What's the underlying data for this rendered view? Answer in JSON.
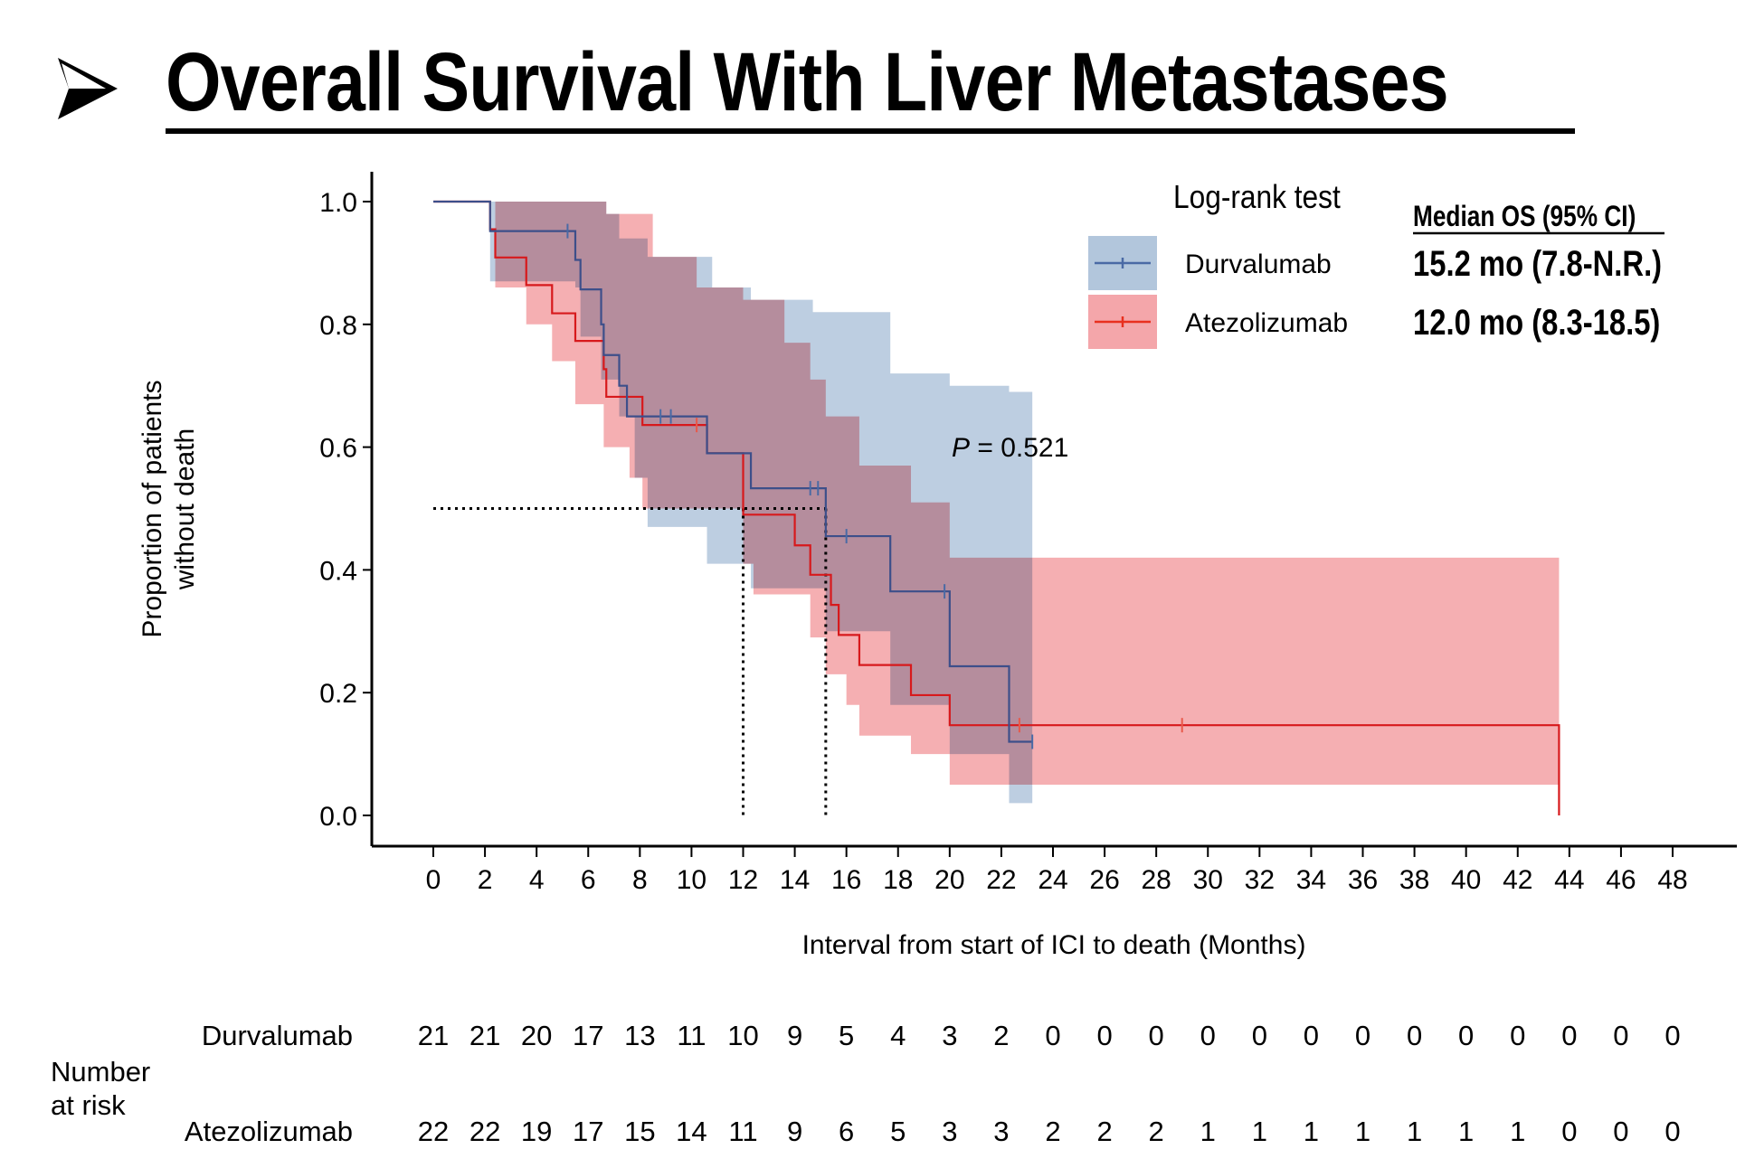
{
  "slide": {
    "bullet_icon": "arrowhead-bullet-icon",
    "title": "Overall Survival With Liver Metastases"
  },
  "chart_data": {
    "type": "line",
    "subtype": "kaplan-meier",
    "title": "Overall Survival With Liver Metastases",
    "xlabel": "Interval from start of ICI to death (Months)",
    "ylabel_line1": "Proportion of patients",
    "ylabel_line2": "without death",
    "xlim": [
      0,
      48
    ],
    "ylim": [
      0,
      1.0
    ],
    "x_ticks": [
      0,
      2,
      4,
      6,
      8,
      10,
      12,
      14,
      16,
      18,
      20,
      22,
      24,
      26,
      28,
      30,
      32,
      34,
      36,
      38,
      40,
      42,
      44,
      46,
      48
    ],
    "y_ticks": [
      0.0,
      0.2,
      0.4,
      0.6,
      0.8,
      1.0
    ],
    "y_tick_labels": [
      "0.0",
      "0.2",
      "0.4",
      "0.6",
      "0.8",
      "1.0"
    ],
    "grid": false,
    "legend": {
      "title": "Log-rank test",
      "placement": "top-right",
      "median_header": "Median OS (95% CI)"
    },
    "annotation": {
      "p_label": "P",
      "p_eq": "= 0.521"
    },
    "median_reference_lines": {
      "y": 0.5,
      "x": [
        12.0,
        15.2
      ]
    },
    "series": [
      {
        "name": "Durvalumab",
        "color": "#3d4f8a",
        "band_color": "#b2c6dc",
        "median_os": "15.2 mo (7.8-N.R.)",
        "steps": [
          [
            0,
            1.0
          ],
          [
            2.2,
            0.952
          ],
          [
            5.5,
            0.905
          ],
          [
            5.7,
            0.857
          ],
          [
            6.5,
            0.8
          ],
          [
            6.6,
            0.75
          ],
          [
            7.2,
            0.7
          ],
          [
            7.5,
            0.65
          ],
          [
            10.6,
            0.59
          ],
          [
            12.3,
            0.533
          ],
          [
            15.2,
            0.455
          ],
          [
            17.7,
            0.365
          ],
          [
            20.0,
            0.243
          ],
          [
            22.3,
            0.12
          ],
          [
            23.2,
            0.12
          ]
        ],
        "ci_upper": [
          [
            0,
            1.0
          ],
          [
            2.2,
            1.0
          ],
          [
            5.5,
            1.0
          ],
          [
            6.7,
            0.98
          ],
          [
            7.2,
            0.94
          ],
          [
            8.3,
            0.91
          ],
          [
            10.8,
            0.86
          ],
          [
            12.3,
            0.84
          ],
          [
            14.7,
            0.82
          ],
          [
            17.7,
            0.72
          ],
          [
            20.0,
            0.7
          ],
          [
            22.3,
            0.69
          ],
          [
            23.2,
            0.69
          ]
        ],
        "ci_lower": [
          [
            0,
            1.0
          ],
          [
            2.2,
            0.87
          ],
          [
            5.5,
            0.86
          ],
          [
            5.7,
            0.78
          ],
          [
            6.5,
            0.71
          ],
          [
            7.2,
            0.65
          ],
          [
            7.8,
            0.55
          ],
          [
            8.3,
            0.47
          ],
          [
            10.6,
            0.41
          ],
          [
            12.3,
            0.37
          ],
          [
            15.2,
            0.3
          ],
          [
            17.7,
            0.18
          ],
          [
            20.0,
            0.1
          ],
          [
            22.3,
            0.02
          ],
          [
            23.2,
            0.02
          ]
        ],
        "censor_times": [
          [
            5.2,
            0.952
          ],
          [
            8.8,
            0.65
          ],
          [
            9.2,
            0.65
          ],
          [
            14.6,
            0.533
          ],
          [
            14.9,
            0.533
          ],
          [
            16.0,
            0.455
          ],
          [
            19.8,
            0.365
          ],
          [
            23.2,
            0.12
          ]
        ]
      },
      {
        "name": "Atezolizumab",
        "color": "#d7191c",
        "band_color": "#f4a6aa",
        "median_os": "12.0 mo (8.3-18.5)",
        "steps": [
          [
            0,
            1.0
          ],
          [
            2.2,
            0.955
          ],
          [
            2.4,
            0.909
          ],
          [
            3.6,
            0.864
          ],
          [
            4.6,
            0.818
          ],
          [
            5.5,
            0.773
          ],
          [
            6.6,
            0.727
          ],
          [
            6.7,
            0.682
          ],
          [
            8.1,
            0.636
          ],
          [
            10.6,
            0.59
          ],
          [
            12.0,
            0.49
          ],
          [
            14.0,
            0.44
          ],
          [
            14.6,
            0.392
          ],
          [
            15.4,
            0.343
          ],
          [
            15.7,
            0.294
          ],
          [
            16.5,
            0.245
          ],
          [
            18.5,
            0.196
          ],
          [
            20.0,
            0.147
          ],
          [
            43.6,
            0.147
          ],
          [
            43.6,
            0.0
          ]
        ],
        "ci_upper": [
          [
            0,
            1.0
          ],
          [
            2.2,
            1.0
          ],
          [
            6.7,
            0.98
          ],
          [
            8.5,
            0.91
          ],
          [
            10.2,
            0.86
          ],
          [
            12.0,
            0.84
          ],
          [
            13.6,
            0.77
          ],
          [
            14.6,
            0.71
          ],
          [
            15.2,
            0.65
          ],
          [
            16.5,
            0.57
          ],
          [
            18.5,
            0.51
          ],
          [
            20.0,
            0.42
          ],
          [
            43.6,
            0.42
          ]
        ],
        "ci_lower": [
          [
            0,
            1.0
          ],
          [
            2.4,
            0.86
          ],
          [
            3.6,
            0.8
          ],
          [
            4.6,
            0.74
          ],
          [
            5.5,
            0.67
          ],
          [
            6.6,
            0.6
          ],
          [
            7.6,
            0.55
          ],
          [
            8.1,
            0.5
          ],
          [
            12.0,
            0.41
          ],
          [
            12.4,
            0.36
          ],
          [
            14.6,
            0.29
          ],
          [
            15.2,
            0.23
          ],
          [
            16.0,
            0.18
          ],
          [
            16.5,
            0.13
          ],
          [
            18.5,
            0.1
          ],
          [
            20.0,
            0.05
          ],
          [
            43.6,
            0.05
          ]
        ],
        "censor_times": [
          [
            10.2,
            0.636
          ],
          [
            22.7,
            0.147
          ],
          [
            29.0,
            0.147
          ]
        ]
      }
    ],
    "risk_table": {
      "label_line1": "Number",
      "label_line2": "at risk",
      "times": [
        0,
        2,
        4,
        6,
        8,
        10,
        12,
        14,
        16,
        18,
        20,
        22,
        24,
        26,
        28,
        30,
        32,
        34,
        36,
        38,
        40,
        42,
        44,
        46,
        48
      ],
      "rows": [
        {
          "name": "Durvalumab",
          "values": [
            21,
            21,
            20,
            17,
            13,
            11,
            10,
            9,
            5,
            4,
            3,
            2,
            0,
            0,
            0,
            0,
            0,
            0,
            0,
            0,
            0,
            0,
            0,
            0,
            0
          ]
        },
        {
          "name": "Atezolizumab",
          "values": [
            22,
            22,
            19,
            17,
            15,
            14,
            11,
            9,
            6,
            5,
            3,
            3,
            2,
            2,
            2,
            1,
            1,
            1,
            1,
            1,
            1,
            1,
            0,
            0,
            0
          ]
        }
      ]
    }
  }
}
